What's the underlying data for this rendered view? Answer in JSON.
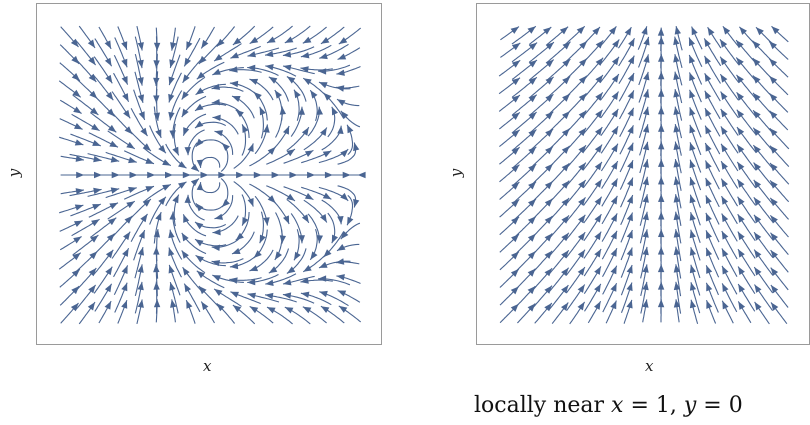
{
  "left_plot": {
    "xlabel": "x",
    "ylabel": "y"
  },
  "right_plot": {
    "xlabel": "x",
    "ylabel": "y",
    "caption_prefix": "locally near ",
    "caption_var1": "x",
    "caption_eq1": " = 1, ",
    "caption_var2": "y",
    "caption_eq2": " = 0"
  },
  "colors": {
    "streamline": "#4a6592",
    "frame": "#9a9a9a"
  },
  "icons": [
    "streamline-arrow-icon"
  ]
}
